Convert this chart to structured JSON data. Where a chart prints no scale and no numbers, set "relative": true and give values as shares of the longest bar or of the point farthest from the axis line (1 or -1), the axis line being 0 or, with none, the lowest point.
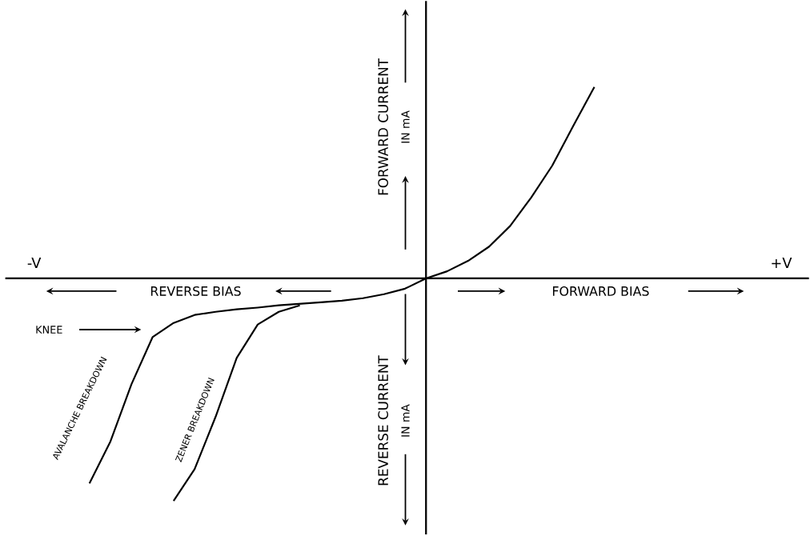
{
  "chart_data": {
    "type": "line",
    "relative": true,
    "marker": "none",
    "line_style": "solid",
    "categories": [
      null,
      null,
      null,
      null,
      null,
      null,
      null,
      null,
      null,
      null,
      null,
      null,
      null,
      null,
      null,
      null,
      null,
      null,
      null,
      null,
      null,
      null,
      null,
      null,
      null,
      null,
      null,
      null,
      null,
      null,
      null,
      null,
      null,
      null,
      null,
      null,
      null,
      null,
      null
    ],
    "series": [
      {
        "name": "AVALANCHE BREAKDOWN",
        "color": "#000000",
        "values": [
          null,
          null,
          null,
          null,
          -0.921,
          -0.732,
          -0.475,
          -0.264,
          -0.2,
          -0.164,
          -0.15,
          -0.139,
          -0.131,
          -0.121,
          -0.114,
          -0.107,
          -0.1,
          -0.089,
          -0.071,
          -0.046,
          0,
          0.032,
          0.079,
          0.143,
          0.236,
          0.364,
          0.507,
          0.686,
          0.86,
          null,
          null,
          null,
          null,
          null,
          null,
          null,
          null,
          null,
          null
        ]
      },
      {
        "name": "ZENER BREAKDOWN",
        "color": "#000000",
        "values": [
          null,
          null,
          null,
          null,
          null,
          null,
          null,
          null,
          -1,
          -0.857,
          -0.621,
          -0.357,
          -0.207,
          -0.15,
          -0.121,
          null,
          null,
          null,
          null,
          null,
          null,
          null,
          null,
          null,
          null,
          null,
          null,
          null,
          null,
          null,
          null,
          null,
          null,
          null,
          null,
          null,
          null,
          null,
          null
        ]
      }
    ],
    "annotations": [
      "-V",
      "+V",
      "REVERSE BIAS",
      "FORWARD BIAS",
      "FORWARD CURRENT",
      "IN mA",
      "REVERSE CURRENT",
      "IN mA",
      "KNEE"
    ]
  }
}
